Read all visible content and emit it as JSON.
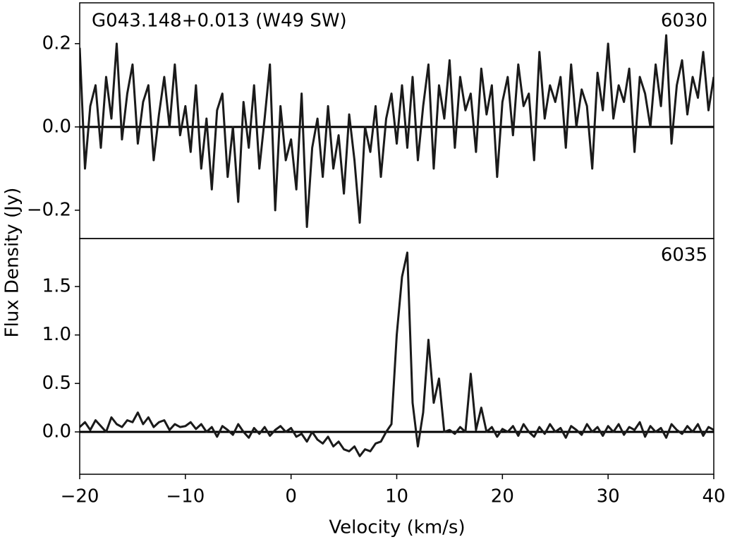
{
  "chart_data": [
    {
      "type": "line",
      "title": "G043.148+0.013 (W49 SW)",
      "annotation": "6030",
      "ylabel": "Flux Density (Jy)",
      "color": "#1a1a1a",
      "hline": 0,
      "xlim": [
        -20,
        40
      ],
      "ylim": [
        -0.268,
        0.298
      ],
      "yticks": [
        {
          "value": -0.2,
          "label": "−0.2"
        },
        {
          "value": 0,
          "label": "0.0"
        },
        0.2
      ],
      "x": [
        -20,
        -19.5,
        -19,
        -18.5,
        -18,
        -17.5,
        -17,
        -16.5,
        -16,
        -15.5,
        -15,
        -14.5,
        -14,
        -13.5,
        -13,
        -12.5,
        -12,
        -11.5,
        -11,
        -10.5,
        -10,
        -9.5,
        -9,
        -8.5,
        -8,
        -7.5,
        -7,
        -6.5,
        -6,
        -5.5,
        -5,
        -4.5,
        -4,
        -3.5,
        -3,
        -2.5,
        -2,
        -1.5,
        -1,
        -0.5,
        0,
        0.5,
        1,
        1.5,
        2,
        2.5,
        3,
        3.5,
        4,
        4.5,
        5,
        5.5,
        6,
        6.5,
        7,
        7.5,
        8,
        8.5,
        9,
        9.5,
        10,
        10.5,
        11,
        11.5,
        12,
        12.5,
        13,
        13.5,
        14,
        14.5,
        15,
        15.5,
        16,
        16.5,
        17,
        17.5,
        18,
        18.5,
        19,
        19.5,
        20,
        20.5,
        21,
        21.5,
        22,
        22.5,
        23,
        23.5,
        24,
        24.5,
        25,
        25.5,
        26,
        26.5,
        27,
        27.5,
        28,
        28.5,
        29,
        29.5,
        30,
        30.5,
        31,
        31.5,
        32,
        32.5,
        33,
        33.5,
        34,
        34.5,
        35,
        35.5,
        36,
        36.5,
        37,
        37.5,
        38,
        38.5,
        39,
        39.5,
        40
      ],
      "values": [
        0.19,
        -0.1,
        0.05,
        0.1,
        -0.05,
        0.12,
        0.02,
        0.2,
        -0.03,
        0.08,
        0.15,
        -0.04,
        0.06,
        0.1,
        -0.08,
        0.03,
        0.12,
        0.0,
        0.15,
        -0.02,
        0.05,
        -0.06,
        0.1,
        -0.1,
        0.02,
        -0.15,
        0.04,
        0.08,
        -0.12,
        0.0,
        -0.18,
        0.06,
        -0.05,
        0.1,
        -0.1,
        0.02,
        0.15,
        -0.2,
        0.05,
        -0.08,
        -0.03,
        -0.15,
        0.08,
        -0.24,
        -0.05,
        0.02,
        -0.12,
        0.05,
        -0.1,
        -0.02,
        -0.16,
        0.03,
        -0.08,
        -0.23,
        0.0,
        -0.06,
        0.05,
        -0.12,
        0.02,
        0.08,
        -0.04,
        0.1,
        -0.05,
        0.12,
        -0.08,
        0.05,
        0.15,
        -0.1,
        0.1,
        0.02,
        0.16,
        -0.05,
        0.12,
        0.04,
        0.08,
        -0.06,
        0.14,
        0.03,
        0.1,
        -0.12,
        0.06,
        0.12,
        -0.02,
        0.15,
        0.05,
        0.08,
        -0.08,
        0.18,
        0.02,
        0.1,
        0.06,
        0.12,
        -0.05,
        0.15,
        0.0,
        0.09,
        0.05,
        -0.1,
        0.13,
        0.04,
        0.2,
        0.02,
        0.1,
        0.06,
        0.14,
        -0.06,
        0.12,
        0.08,
        0.0,
        0.15,
        0.05,
        0.22,
        -0.04,
        0.1,
        0.16,
        0.03,
        0.12,
        0.07,
        0.18,
        0.04,
        0.12
      ]
    },
    {
      "type": "line",
      "annotation": "6035",
      "xlabel": "Velocity (km/s)",
      "color": "#1a1a1a",
      "hline": 0,
      "xlim": [
        -20,
        40
      ],
      "ylim": [
        -0.437,
        1.995
      ],
      "xticks": [
        {
          "value": -20,
          "label": "−20"
        },
        {
          "value": -10,
          "label": "−10"
        },
        0,
        10,
        20,
        30,
        40
      ],
      "yticks": [
        {
          "value": 0,
          "label": "0.0"
        },
        0.5,
        {
          "value": 1,
          "label": "1.0"
        },
        1.5
      ],
      "x": [
        -20,
        -19.5,
        -19,
        -18.5,
        -18,
        -17.5,
        -17,
        -16.5,
        -16,
        -15.5,
        -15,
        -14.5,
        -14,
        -13.5,
        -13,
        -12.5,
        -12,
        -11.5,
        -11,
        -10.5,
        -10,
        -9.5,
        -9,
        -8.5,
        -8,
        -7.5,
        -7,
        -6.5,
        -6,
        -5.5,
        -5,
        -4.5,
        -4,
        -3.5,
        -3,
        -2.5,
        -2,
        -1.5,
        -1,
        -0.5,
        0,
        0.5,
        1,
        1.5,
        2,
        2.5,
        3,
        3.5,
        4,
        4.5,
        5,
        5.5,
        6,
        6.5,
        7,
        7.5,
        8,
        8.5,
        9,
        9.5,
        10,
        10.5,
        11,
        11.5,
        12,
        12.5,
        13,
        13.5,
        14,
        14.5,
        15,
        15.5,
        16,
        16.5,
        17,
        17.5,
        18,
        18.5,
        19,
        19.5,
        20,
        20.5,
        21,
        21.5,
        22,
        22.5,
        23,
        23.5,
        24,
        24.5,
        25,
        25.5,
        26,
        26.5,
        27,
        27.5,
        28,
        28.5,
        29,
        29.5,
        30,
        30.5,
        31,
        31.5,
        32,
        32.5,
        33,
        33.5,
        34,
        34.5,
        35,
        35.5,
        36,
        36.5,
        37,
        37.5,
        38,
        38.5,
        39,
        39.5,
        40
      ],
      "values": [
        0.05,
        0.1,
        0.02,
        0.12,
        0.06,
        0.0,
        0.15,
        0.08,
        0.05,
        0.12,
        0.1,
        0.2,
        0.08,
        0.15,
        0.05,
        0.1,
        0.12,
        0.02,
        0.08,
        0.05,
        0.06,
        0.1,
        0.03,
        0.08,
        0.0,
        0.05,
        -0.05,
        0.06,
        0.02,
        -0.03,
        0.08,
        0.0,
        -0.06,
        0.04,
        -0.02,
        0.05,
        -0.04,
        0.02,
        0.06,
        0.0,
        0.04,
        -0.05,
        -0.02,
        -0.1,
        0.0,
        -0.08,
        -0.12,
        -0.05,
        -0.15,
        -0.1,
        -0.18,
        -0.2,
        -0.15,
        -0.25,
        -0.18,
        -0.2,
        -0.12,
        -0.1,
        0.0,
        0.08,
        1.0,
        1.6,
        1.85,
        0.3,
        -0.15,
        0.2,
        0.95,
        0.3,
        0.55,
        0.0,
        0.02,
        -0.02,
        0.05,
        0.0,
        0.6,
        0.02,
        0.25,
        0.0,
        0.05,
        -0.05,
        0.03,
        0.0,
        0.06,
        -0.04,
        0.08,
        0.0,
        -0.05,
        0.05,
        -0.02,
        0.08,
        0.0,
        0.04,
        -0.06,
        0.06,
        0.02,
        -0.03,
        0.08,
        0.0,
        0.05,
        -0.04,
        0.06,
        0.0,
        0.08,
        -0.03,
        0.05,
        0.02,
        0.1,
        -0.05,
        0.06,
        0.0,
        0.04,
        -0.06,
        0.08,
        0.02,
        -0.02,
        0.06,
        0.0,
        0.08,
        -0.04,
        0.05,
        0.02
      ]
    }
  ]
}
